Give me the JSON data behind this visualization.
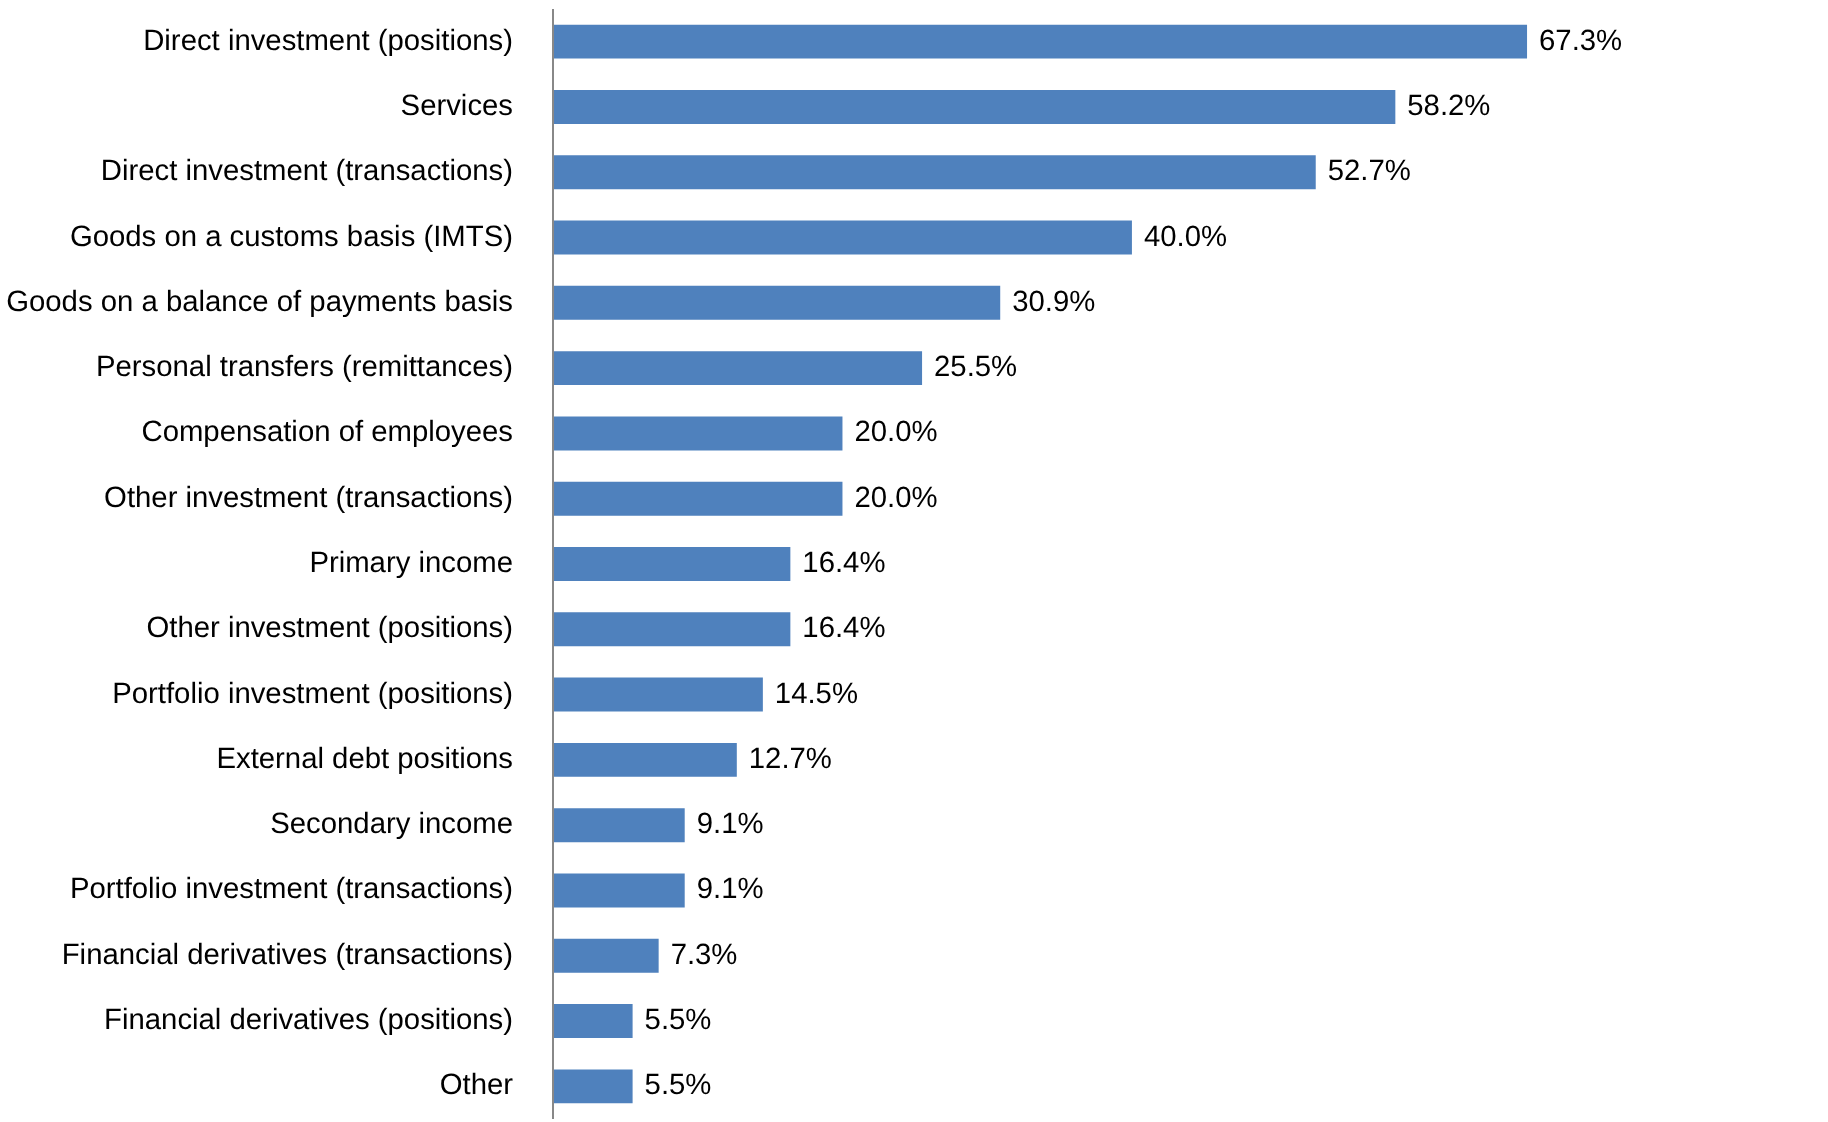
{
  "chart_data": {
    "type": "bar",
    "orientation": "horizontal",
    "color": "#4f81bd",
    "categories": [
      "Direct investment (positions)",
      "Services",
      "Direct investment (transactions)",
      "Goods on a customs basis (IMTS)",
      "Goods on a balance of payments basis",
      "Personal transfers (remittances)",
      "Compensation of employees",
      "Other investment (transactions)",
      "Primary income",
      "Other investment (positions)",
      "Portfolio investment (positions)",
      "External debt positions",
      "Secondary income",
      "Portfolio investment (transactions)",
      "Financial derivatives (transactions)",
      "Financial derivatives (positions)",
      "Other"
    ],
    "values": [
      67.3,
      58.2,
      52.7,
      40.0,
      30.9,
      25.5,
      20.0,
      20.0,
      16.4,
      16.4,
      14.5,
      12.7,
      9.1,
      9.1,
      7.3,
      5.5,
      5.5
    ],
    "value_labels": [
      "67.3%",
      "58.2%",
      "52.7%",
      "40.0%",
      "30.9%",
      "25.5%",
      "20.0%",
      "20.0%",
      "16.4%",
      "16.4%",
      "14.5%",
      "12.7%",
      "9.1%",
      "9.1%",
      "7.3%",
      "5.5%",
      "5.5%"
    ]
  }
}
